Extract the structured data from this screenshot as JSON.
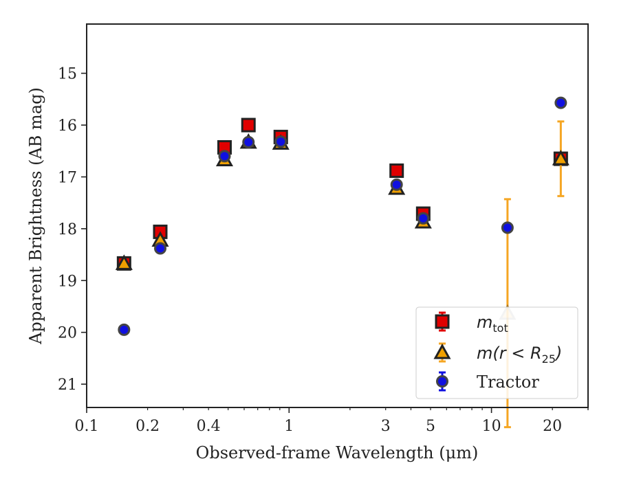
{
  "chart_data": {
    "type": "scatter",
    "title": "",
    "xlabel": "Observed-frame Wavelength (μm)",
    "ylabel": "Apparent Brightness (AB mag)",
    "xscale": "log",
    "xlim": [
      0.1,
      30
    ],
    "ylim": [
      21.45,
      14.05
    ],
    "y_inverted": true,
    "grid": false,
    "legend_position": "lower-right",
    "xticks": [
      {
        "value": 0.1,
        "label": "0.1"
      },
      {
        "value": 0.2,
        "label": "0.2"
      },
      {
        "value": 0.4,
        "label": "0.4"
      },
      {
        "value": 1,
        "label": "1"
      },
      {
        "value": 3,
        "label": "3"
      },
      {
        "value": 5,
        "label": "5"
      },
      {
        "value": 10,
        "label": "10"
      },
      {
        "value": 20,
        "label": "20"
      }
    ],
    "yticks": [
      {
        "value": 15,
        "label": "15"
      },
      {
        "value": 16,
        "label": "16"
      },
      {
        "value": 17,
        "label": "17"
      },
      {
        "value": 18,
        "label": "18"
      },
      {
        "value": 19,
        "label": "19"
      },
      {
        "value": 20,
        "label": "20"
      },
      {
        "value": 21,
        "label": "21"
      }
    ],
    "series": [
      {
        "name": "m_tot",
        "legend_main": "m",
        "legend_sub": "tot",
        "marker": "square",
        "fill": "#e00000",
        "edge": "#222222",
        "errcolor": "#e00000",
        "points": [
          {
            "x": 0.153,
            "y": 18.67,
            "err": 0.04
          },
          {
            "x": 0.231,
            "y": 18.06,
            "err": 0.04
          },
          {
            "x": 0.48,
            "y": 16.43,
            "err": 0.03
          },
          {
            "x": 0.63,
            "y": 16.0,
            "err": 0.03
          },
          {
            "x": 0.91,
            "y": 16.23,
            "err": 0.03
          },
          {
            "x": 3.4,
            "y": 16.88,
            "err": 0.04
          },
          {
            "x": 4.6,
            "y": 17.71,
            "err": 0.05
          },
          {
            "x": 22.0,
            "y": 16.65,
            "err": 0.05
          }
        ]
      },
      {
        "name": "m(r<R25)",
        "legend_main": "m(r < R",
        "legend_sub": "25",
        "legend_tail": ")",
        "marker": "triangle",
        "fill": "#f0a000",
        "edge": "#222222",
        "errcolor": "#f5a623",
        "points": [
          {
            "x": 0.153,
            "y": 18.67,
            "err": 0.04
          },
          {
            "x": 0.231,
            "y": 18.22,
            "err": 0.04
          },
          {
            "x": 0.48,
            "y": 16.67,
            "err": 0.03
          },
          {
            "x": 0.63,
            "y": 16.33,
            "err": 0.03
          },
          {
            "x": 0.91,
            "y": 16.35,
            "err": 0.03
          },
          {
            "x": 3.4,
            "y": 17.22,
            "err": 0.04
          },
          {
            "x": 4.6,
            "y": 17.87,
            "err": 0.05
          },
          {
            "x": 12.0,
            "y": 19.63,
            "err": 2.2
          },
          {
            "x": 22.0,
            "y": 16.65,
            "err": 0.72
          }
        ]
      },
      {
        "name": "Tractor",
        "legend_main": "Tractor",
        "marker": "circle",
        "fill": "#1010e0",
        "edge": "#444444",
        "errcolor": "#1010e0",
        "points": [
          {
            "x": 0.153,
            "y": 19.95,
            "err": 0.05
          },
          {
            "x": 0.231,
            "y": 18.38,
            "err": 0.05
          },
          {
            "x": 0.48,
            "y": 16.6,
            "err": 0.04
          },
          {
            "x": 0.63,
            "y": 16.33,
            "err": 0.04
          },
          {
            "x": 0.91,
            "y": 16.32,
            "err": 0.04
          },
          {
            "x": 3.4,
            "y": 17.15,
            "err": 0.05
          },
          {
            "x": 4.6,
            "y": 17.8,
            "err": 0.05
          },
          {
            "x": 12.0,
            "y": 17.98,
            "err": 0.05
          },
          {
            "x": 22.0,
            "y": 15.57,
            "err": 0.07
          }
        ]
      }
    ]
  }
}
